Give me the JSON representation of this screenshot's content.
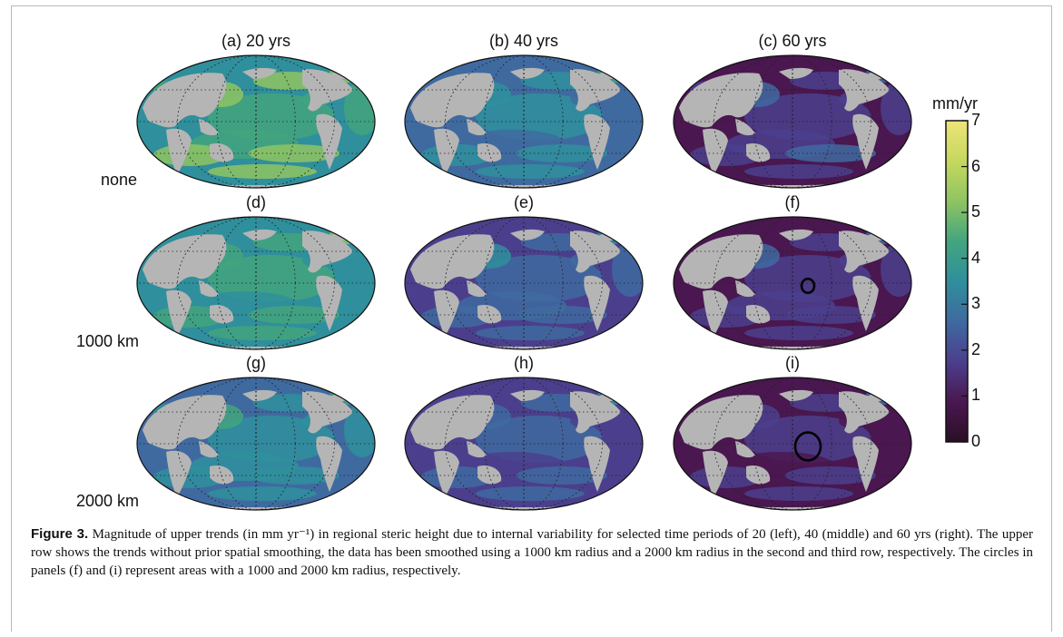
{
  "figure": {
    "panels": [
      {
        "id": "a",
        "title": "(a) 20 yrs",
        "level": 0.55,
        "circle": 0
      },
      {
        "id": "b",
        "title": "(b) 40 yrs",
        "level": 0.32,
        "circle": 0
      },
      {
        "id": "c",
        "title": "(c) 60 yrs",
        "level": 0.15,
        "circle": 0
      },
      {
        "id": "d",
        "title": "(d)",
        "level": 0.45,
        "circle": 0
      },
      {
        "id": "e",
        "title": "(e)",
        "level": 0.25,
        "circle": 0
      },
      {
        "id": "f",
        "title": "(f)",
        "level": 0.12,
        "circle": 1000
      },
      {
        "id": "g",
        "title": "(g)",
        "level": 0.38,
        "circle": 0
      },
      {
        "id": "h",
        "title": "(h)",
        "level": 0.2,
        "circle": 0
      },
      {
        "id": "i",
        "title": "(i)",
        "level": 0.08,
        "circle": 2000
      }
    ],
    "row_labels": [
      "none",
      "1000 km",
      "2000 km"
    ],
    "colorbar": {
      "title": "mm/yr",
      "ticks": [
        "7",
        "6",
        "5",
        "4",
        "3",
        "2",
        "1",
        "0"
      ],
      "colors": [
        "#2a0f27",
        "#4a1750",
        "#4b3f8d",
        "#3f6aa0",
        "#2f8f9c",
        "#43a57e",
        "#8fc462",
        "#c6d85e",
        "#eee37a"
      ]
    }
  },
  "caption": {
    "label": "Figure 3.",
    "text": " Magnitude of upper trends (in mm yr⁻¹) in regional steric height due to internal variability for selected time periods of 20 (left), 40 (middle) and 60 yrs (right). The upper row shows the trends without prior spatial smoothing, the data has been smoothed using a 1000 km radius and a 2000 km radius in the second and third row, respectively. The circles in panels (f) and (i) represent areas with a 1000 and 2000 km radius, respectively."
  }
}
